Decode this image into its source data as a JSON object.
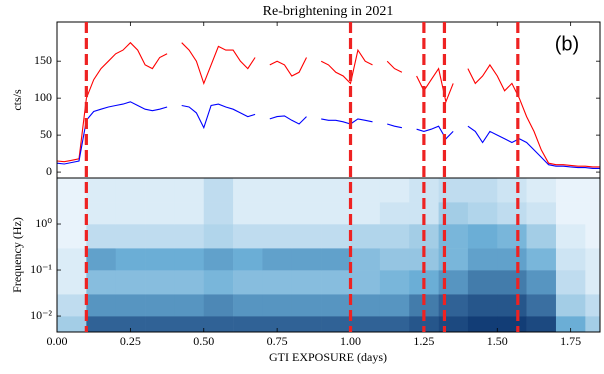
{
  "chart_data": [
    {
      "type": "line",
      "title": "Re-brightening in 2021",
      "ylabel": "cts/s",
      "annotation": "(b)",
      "x": [
        0,
        0.025,
        0.05,
        0.075,
        0.1,
        0.125,
        0.15,
        0.175,
        0.2,
        0.225,
        0.25,
        0.275,
        0.3,
        0.325,
        0.35,
        0.375,
        0.4,
        0.425,
        0.45,
        0.475,
        0.5,
        0.525,
        0.55,
        0.575,
        0.6,
        0.625,
        0.65,
        0.675,
        0.7,
        0.725,
        0.75,
        0.775,
        0.8,
        0.825,
        0.85,
        0.875,
        0.9,
        0.925,
        0.95,
        0.975,
        1.0,
        1.025,
        1.05,
        1.075,
        1.1,
        1.125,
        1.15,
        1.175,
        1.2,
        1.225,
        1.25,
        1.275,
        1.3,
        1.325,
        1.35,
        1.375,
        1.4,
        1.425,
        1.45,
        1.475,
        1.5,
        1.525,
        1.55,
        1.575,
        1.6,
        1.625,
        1.65,
        1.675,
        1.7,
        1.725,
        1.75,
        1.775,
        1.8,
        1.825,
        1.85
      ],
      "series": [
        {
          "color": "#ff0000",
          "values": [
            15,
            14,
            16,
            18,
            100,
            125,
            140,
            150,
            160,
            165,
            175,
            165,
            145,
            140,
            155,
            160,
            null,
            175,
            165,
            150,
            120,
            145,
            170,
            165,
            165,
            150,
            140,
            155,
            null,
            145,
            150,
            145,
            130,
            135,
            155,
            null,
            150,
            145,
            135,
            130,
            120,
            165,
            150,
            145,
            null,
            150,
            140,
            135,
            null,
            130,
            110,
            125,
            140,
            95,
            120,
            null,
            140,
            120,
            130,
            145,
            130,
            110,
            120,
            100,
            75,
            55,
            30,
            12,
            10,
            10,
            9,
            8,
            8,
            7,
            7
          ]
        },
        {
          "color": "#0000ff",
          "values": [
            12,
            11,
            13,
            15,
            70,
            82,
            85,
            88,
            90,
            92,
            95,
            90,
            85,
            83,
            85,
            88,
            null,
            90,
            88,
            80,
            60,
            90,
            92,
            88,
            85,
            80,
            75,
            78,
            null,
            72,
            75,
            76,
            70,
            65,
            75,
            null,
            72,
            70,
            70,
            68,
            65,
            72,
            70,
            68,
            null,
            65,
            62,
            60,
            null,
            58,
            55,
            58,
            62,
            45,
            55,
            null,
            62,
            55,
            40,
            55,
            50,
            45,
            40,
            45,
            40,
            30,
            20,
            10,
            8,
            8,
            7,
            6,
            6,
            5,
            5
          ]
        }
      ],
      "xlim": [
        0,
        1.85
      ],
      "ylim": [
        -8,
        203
      ],
      "yticks": [
        0,
        50,
        100,
        150
      ],
      "vlines": {
        "x": [
          0.1,
          1.0,
          1.25,
          1.32,
          1.57
        ],
        "color": "#ee2222"
      }
    },
    {
      "type": "heatmap",
      "xlabel": "GTI EXPOSURE (days)",
      "ylabel": "Frequency (Hz)",
      "yscale": "log",
      "xlim": [
        0,
        1.85
      ],
      "ylim": [
        0.0045,
        10
      ],
      "xticks": [
        {
          "value": 0,
          "label": "0.00"
        },
        {
          "value": 0.25,
          "label": "0.25"
        },
        {
          "value": 0.5,
          "label": "0.50"
        },
        {
          "value": 0.75,
          "label": "0.75"
        },
        {
          "value": 1,
          "label": "1.00"
        },
        {
          "value": 1.25,
          "label": "1.25"
        },
        {
          "value": 1.5,
          "label": "1.50"
        },
        {
          "value": 1.75,
          "label": "1.75"
        }
      ],
      "yticks": [
        {
          "value": 0.01,
          "label": "10⁻²"
        },
        {
          "value": 0.1,
          "label": "10⁻¹"
        },
        {
          "value": 1,
          "label": "10⁰"
        }
      ],
      "cmap": [
        "#f7fbff",
        "#6baed6",
        "#08306b"
      ],
      "x": [
        0,
        0.1,
        0.2,
        0.3,
        0.4,
        0.5,
        0.6,
        0.7,
        0.8,
        0.9,
        1.0,
        1.1,
        1.2,
        1.3,
        1.4,
        1.5,
        1.6,
        1.7,
        1.8,
        1.85
      ],
      "y": [
        0.0045,
        0.01,
        0.03,
        0.1,
        0.3,
        1,
        3,
        10
      ],
      "z": [
        [
          0.3,
          0.8,
          0.8,
          0.8,
          0.8,
          0.8,
          0.8,
          0.8,
          0.8,
          0.8,
          0.8,
          0.8,
          0.85,
          0.9,
          0.95,
          0.95,
          0.9,
          0.5,
          0.3
        ],
        [
          0.2,
          0.6,
          0.6,
          0.6,
          0.6,
          0.65,
          0.6,
          0.6,
          0.6,
          0.6,
          0.6,
          0.6,
          0.7,
          0.8,
          0.85,
          0.85,
          0.75,
          0.3,
          0.2
        ],
        [
          0.1,
          0.4,
          0.4,
          0.4,
          0.4,
          0.45,
          0.4,
          0.4,
          0.4,
          0.4,
          0.4,
          0.45,
          0.5,
          0.6,
          0.7,
          0.7,
          0.6,
          0.2,
          0.1
        ],
        [
          0.1,
          0.55,
          0.5,
          0.5,
          0.5,
          0.55,
          0.5,
          0.55,
          0.55,
          0.55,
          0.4,
          0.35,
          0.35,
          0.45,
          0.55,
          0.55,
          0.45,
          0.15,
          0.1
        ],
        [
          0.05,
          0.2,
          0.2,
          0.2,
          0.2,
          0.25,
          0.2,
          0.2,
          0.2,
          0.2,
          0.25,
          0.25,
          0.3,
          0.45,
          0.5,
          0.45,
          0.3,
          0.1,
          0.05
        ],
        [
          0.05,
          0.1,
          0.1,
          0.1,
          0.1,
          0.2,
          0.1,
          0.1,
          0.1,
          0.1,
          0.1,
          0.15,
          0.15,
          0.3,
          0.25,
          0.2,
          0.15,
          0.05,
          0.05
        ],
        [
          0.05,
          0.1,
          0.1,
          0.1,
          0.1,
          0.2,
          0.1,
          0.1,
          0.1,
          0.1,
          0.1,
          0.1,
          0.15,
          0.2,
          0.2,
          0.15,
          0.1,
          0.05,
          0.05
        ]
      ]
    }
  ]
}
